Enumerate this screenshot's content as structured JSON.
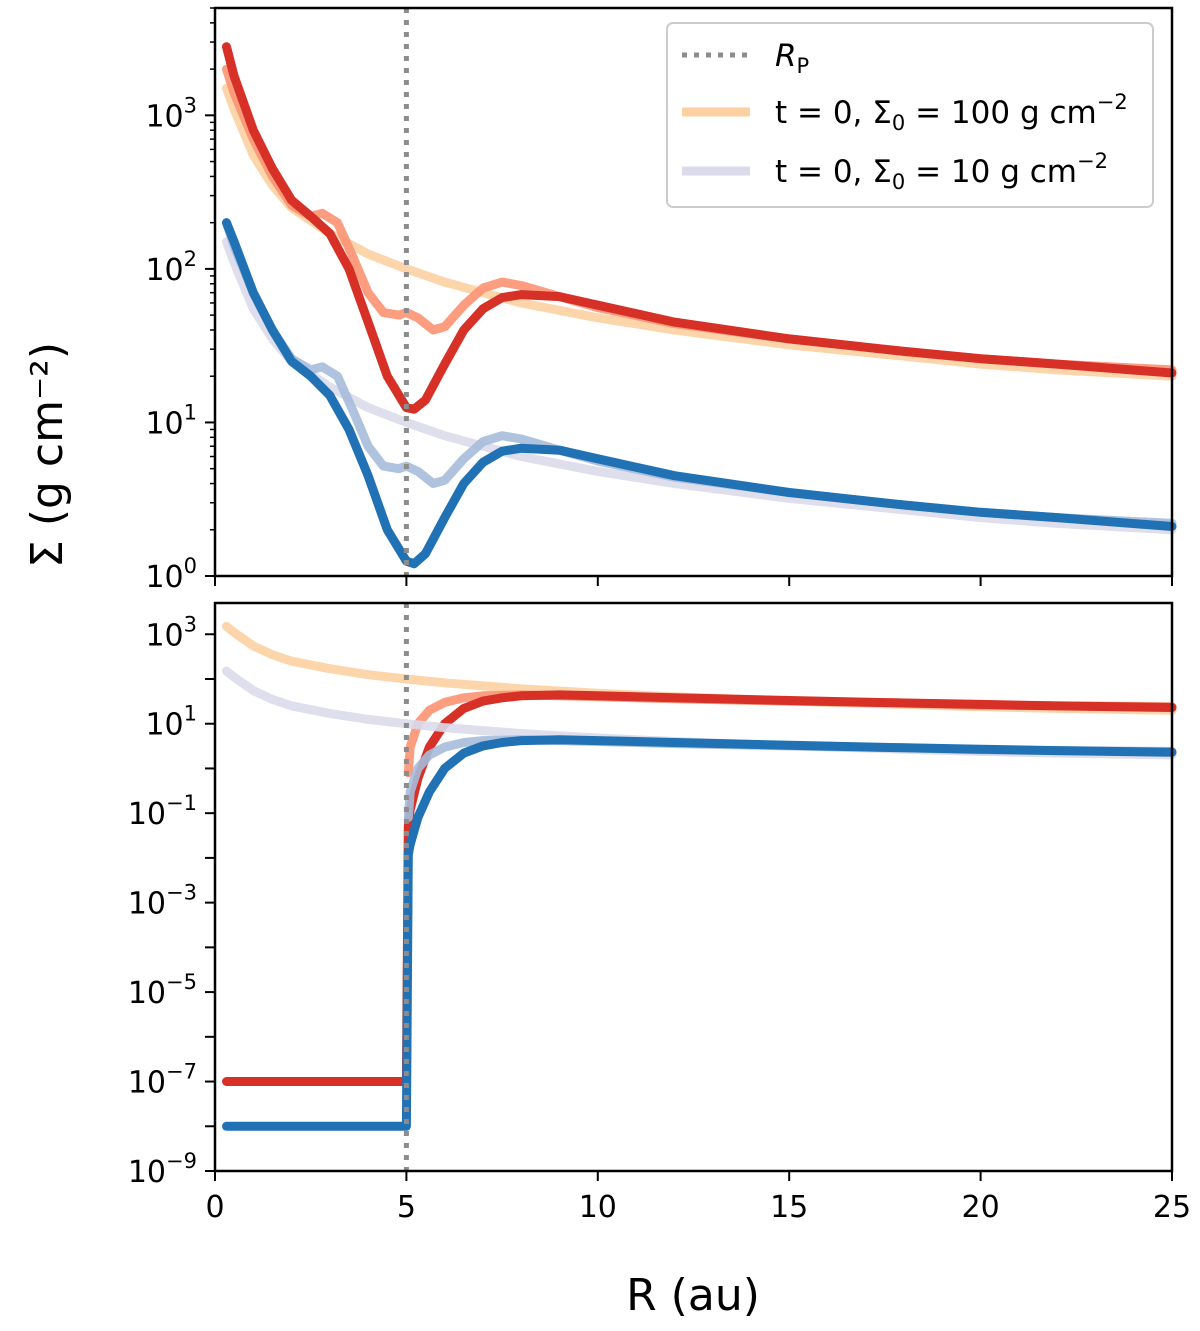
{
  "chart_data": [
    {
      "type": "line",
      "panel": "top",
      "ylabel": "Σ (g cm⁻²)",
      "xlim": [
        0,
        25
      ],
      "ylim": [
        1,
        5000
      ],
      "yscale": "log",
      "x_ticks": [
        0,
        5,
        10,
        15,
        20,
        25
      ],
      "y_ticks": [
        {
          "value": 1,
          "base": "10",
          "exp": "0"
        },
        {
          "value": 10,
          "base": "10",
          "exp": "1"
        },
        {
          "value": 100,
          "base": "10",
          "exp": "2"
        },
        {
          "value": 1000,
          "base": "10",
          "exp": "3"
        }
      ],
      "planet_radius_line": 5,
      "legend": {
        "placement": "top-right",
        "entries": [
          {
            "label_main": "R",
            "label_sub": "P",
            "style": "dotted",
            "color": "#8c8c8c"
          },
          {
            "label_text": "t = 0, Σ",
            "label_sub": "0",
            "label_tail": " = 100 g cm",
            "label_sup": "−2",
            "color": "#fdd0a2"
          },
          {
            "label_text": "t = 0, Σ",
            "label_sub": "0",
            "label_tail": " = 10 g cm",
            "label_sup": "−2",
            "color": "#dadaeb"
          }
        ]
      },
      "series": [
        {
          "color": "#fdd0a2",
          "width": 9,
          "opacity": 0.9,
          "x": [
            0.3,
            0.5,
            1,
            1.5,
            2,
            3,
            4,
            5,
            6,
            7,
            8,
            10,
            12,
            15,
            18,
            20,
            22,
            25
          ],
          "y": [
            1500,
            1100,
            550,
            350,
            250,
            170,
            125,
            100,
            82,
            70,
            60,
            48,
            40,
            32,
            27,
            24,
            22,
            20
          ]
        },
        {
          "color": "#fc9272",
          "width": 9,
          "opacity": 0.9,
          "x": [
            0.3,
            0.5,
            1,
            1.5,
            2,
            2.5,
            2.8,
            3.2,
            3.6,
            4,
            4.4,
            4.8,
            5,
            5.3,
            5.7,
            6,
            6.5,
            7,
            7.5,
            8,
            9,
            10,
            12,
            15,
            18,
            20,
            22,
            25
          ],
          "y": [
            2000,
            1400,
            700,
            400,
            260,
            220,
            230,
            200,
            120,
            70,
            52,
            50,
            52,
            48,
            40,
            42,
            58,
            75,
            82,
            78,
            66,
            56,
            44,
            35,
            29,
            26,
            24,
            22
          ]
        },
        {
          "color": "#d73027",
          "width": 9,
          "opacity": 1,
          "x": [
            0.3,
            0.5,
            1,
            1.5,
            2,
            2.5,
            3,
            3.5,
            4,
            4.5,
            5,
            5.2,
            5.5,
            6,
            6.5,
            7,
            7.5,
            8,
            9,
            10,
            12,
            15,
            18,
            20,
            22,
            25
          ],
          "y": [
            2800,
            1800,
            800,
            450,
            280,
            220,
            170,
            100,
            45,
            20,
            12.5,
            12.2,
            14,
            24,
            40,
            55,
            65,
            68,
            66,
            58,
            45,
            35,
            29,
            26,
            24,
            21
          ]
        },
        {
          "color": "#dadaeb",
          "width": 9,
          "opacity": 0.9,
          "x": [
            0.3,
            0.5,
            1,
            1.5,
            2,
            3,
            4,
            5,
            6,
            7,
            8,
            10,
            12,
            15,
            18,
            20,
            22,
            25
          ],
          "y": [
            150,
            110,
            55,
            35,
            25,
            17,
            12.5,
            10,
            8.2,
            7.0,
            6.0,
            4.8,
            4.0,
            3.2,
            2.7,
            2.4,
            2.2,
            2.0
          ]
        },
        {
          "color": "#a6bddb",
          "width": 9,
          "opacity": 0.9,
          "x": [
            0.3,
            0.5,
            1,
            1.5,
            2,
            2.5,
            2.8,
            3.2,
            3.6,
            4,
            4.4,
            4.8,
            5,
            5.3,
            5.7,
            6,
            6.5,
            7,
            7.5,
            8,
            9,
            10,
            12,
            15,
            18,
            20,
            22,
            25
          ],
          "y": [
            200,
            140,
            70,
            40,
            26,
            22,
            23,
            20,
            12,
            7,
            5.2,
            5.0,
            5.2,
            4.8,
            4.0,
            4.2,
            5.8,
            7.5,
            8.2,
            7.8,
            6.6,
            5.6,
            4.4,
            3.5,
            2.9,
            2.6,
            2.4,
            2.2
          ]
        },
        {
          "color": "#2171b5",
          "width": 9,
          "opacity": 1,
          "x": [
            0.3,
            0.5,
            1,
            1.5,
            2,
            2.5,
            3,
            3.5,
            4,
            4.5,
            5,
            5.2,
            5.5,
            6,
            6.5,
            7,
            7.5,
            8,
            9,
            10,
            12,
            15,
            18,
            20,
            22,
            25
          ],
          "y": [
            200,
            150,
            70,
            40,
            25,
            20,
            15,
            9,
            4.5,
            2.0,
            1.25,
            1.2,
            1.4,
            2.4,
            4.0,
            5.5,
            6.5,
            6.8,
            6.6,
            5.8,
            4.5,
            3.5,
            2.9,
            2.6,
            2.4,
            2.1
          ]
        }
      ]
    },
    {
      "type": "line",
      "panel": "bottom",
      "xlabel": "R (au)",
      "xlim": [
        0,
        25
      ],
      "ylim": [
        1e-09,
        5000
      ],
      "yscale": "log",
      "x_ticks": [
        0,
        5,
        10,
        15,
        20,
        25
      ],
      "y_ticks": [
        {
          "value": 1e-09,
          "base": "10",
          "exp": "−9"
        },
        {
          "value": 1e-07,
          "base": "10",
          "exp": "−7"
        },
        {
          "value": 1e-05,
          "base": "10",
          "exp": "−5"
        },
        {
          "value": 0.001,
          "base": "10",
          "exp": "−3"
        },
        {
          "value": 0.1,
          "base": "10",
          "exp": "−1"
        },
        {
          "value": 10,
          "base": "10",
          "exp": "1"
        },
        {
          "value": 1000,
          "base": "10",
          "exp": "3"
        }
      ],
      "planet_radius_line": 5,
      "series": [
        {
          "color": "#fdd0a2",
          "width": 9,
          "opacity": 0.9,
          "x": [
            0.3,
            0.5,
            1,
            1.5,
            2,
            3,
            4,
            5,
            6,
            7,
            8,
            10,
            12,
            15,
            18,
            20,
            22,
            25
          ],
          "y": [
            1500,
            1100,
            550,
            350,
            250,
            170,
            125,
            100,
            82,
            70,
            60,
            48,
            40,
            32,
            27,
            24,
            22,
            20
          ]
        },
        {
          "color": "#fc9272",
          "width": 9,
          "opacity": 0.9,
          "x": [
            5.05,
            5.1,
            5.3,
            5.6,
            6,
            6.5,
            7,
            8,
            9,
            10,
            12,
            15,
            18,
            20,
            22,
            25
          ],
          "y": [
            0.8,
            3,
            10,
            20,
            30,
            38,
            42,
            44,
            42,
            40,
            36,
            32,
            29,
            26,
            25,
            24
          ]
        },
        {
          "color": "#d73027",
          "width": 9,
          "opacity": 1,
          "x": [
            0.3,
            4.9,
            5.0,
            5.05,
            5.1,
            5.3,
            5.6,
            6,
            6.5,
            7,
            7.5,
            8,
            9,
            10,
            12,
            15,
            18,
            20,
            22,
            25
          ],
          "y": [
            1e-07,
            1e-07,
            1e-07,
            0.05,
            0.12,
            0.6,
            3,
            10,
            22,
            32,
            38,
            42,
            44,
            42,
            38,
            33,
            29,
            27,
            25,
            23
          ]
        },
        {
          "color": "#dadaeb",
          "width": 9,
          "opacity": 0.9,
          "x": [
            0.3,
            0.5,
            1,
            1.5,
            2,
            3,
            4,
            5,
            6,
            7,
            8,
            10,
            12,
            15,
            18,
            20,
            22,
            25
          ],
          "y": [
            150,
            110,
            55,
            35,
            25,
            17,
            12.5,
            10,
            8.2,
            7.0,
            6.0,
            4.8,
            4.0,
            3.2,
            2.7,
            2.4,
            2.2,
            2.0
          ]
        },
        {
          "color": "#a6bddb",
          "width": 9,
          "opacity": 0.9,
          "x": [
            5.05,
            5.1,
            5.3,
            5.6,
            6,
            6.5,
            7,
            8,
            9,
            10,
            12,
            15,
            18,
            20,
            22,
            25
          ],
          "y": [
            0.08,
            0.3,
            1.0,
            2.0,
            3.0,
            3.8,
            4.2,
            4.4,
            4.2,
            4.0,
            3.6,
            3.2,
            2.9,
            2.6,
            2.5,
            2.4
          ]
        },
        {
          "color": "#2171b5",
          "width": 9,
          "opacity": 1,
          "x": [
            0.3,
            4.9,
            5.0,
            5.05,
            5.1,
            5.3,
            5.6,
            6,
            6.5,
            7,
            7.5,
            8,
            9,
            10,
            12,
            15,
            18,
            20,
            22,
            25
          ],
          "y": [
            1e-08,
            1e-08,
            1e-08,
            0.012,
            0.02,
            0.08,
            0.3,
            1.0,
            2.2,
            3.2,
            3.8,
            4.2,
            4.4,
            4.2,
            3.8,
            3.3,
            2.9,
            2.7,
            2.5,
            2.3
          ]
        }
      ]
    }
  ]
}
